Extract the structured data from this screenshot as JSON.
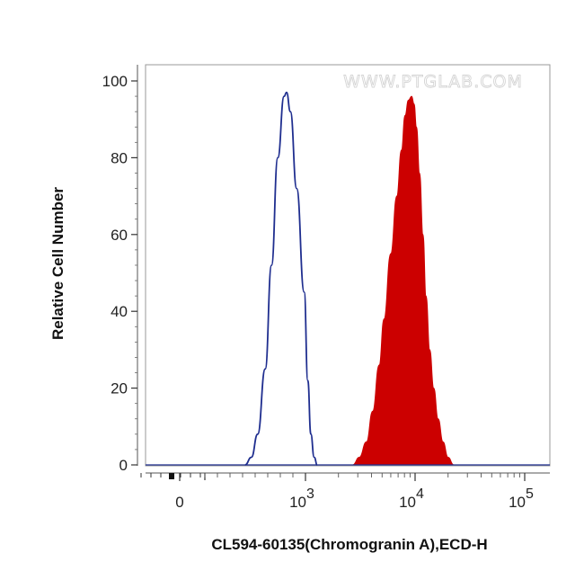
{
  "watermark": "WWW.PTGLAB.COM",
  "chart_data": {
    "type": "area",
    "xlabel": "CL594-60135(Chromogranin A),ECD-H",
    "ylabel": "Relative Cell Number",
    "x_scale": "biexponential",
    "xlim": [
      -150,
      150000
    ],
    "ylim": [
      0,
      100
    ],
    "yticks": [
      0,
      20,
      40,
      60,
      80,
      100
    ],
    "xticks": [
      {
        "value": 0,
        "base": "0",
        "exp": ""
      },
      {
        "value": 1000,
        "base": "10",
        "exp": "3"
      },
      {
        "value": 10000,
        "base": "10",
        "exp": "4"
      },
      {
        "value": 100000,
        "base": "10",
        "exp": "5"
      }
    ],
    "series": [
      {
        "style": "outline",
        "color": "#1f2e8f",
        "points": [
          [
            520,
            0
          ],
          [
            570,
            2
          ],
          [
            620,
            8
          ],
          [
            680,
            25
          ],
          [
            730,
            52
          ],
          [
            780,
            80
          ],
          [
            830,
            96
          ],
          [
            850,
            97
          ],
          [
            880,
            92
          ],
          [
            930,
            72
          ],
          [
            990,
            45
          ],
          [
            1050,
            22
          ],
          [
            1120,
            8
          ],
          [
            1200,
            2
          ],
          [
            1280,
            0
          ]
        ]
      },
      {
        "style": "filled",
        "color": "#cc0000",
        "points": [
          [
            2700,
            0
          ],
          [
            3100,
            2
          ],
          [
            3600,
            6
          ],
          [
            4100,
            14
          ],
          [
            4700,
            26
          ],
          [
            5200,
            38
          ],
          [
            6000,
            55
          ],
          [
            6800,
            70
          ],
          [
            7500,
            82
          ],
          [
            8100,
            91
          ],
          [
            8700,
            95
          ],
          [
            9300,
            96
          ],
          [
            9800,
            94
          ],
          [
            10300,
            88
          ],
          [
            11000,
            76
          ],
          [
            11800,
            60
          ],
          [
            12600,
            44
          ],
          [
            13600,
            30
          ],
          [
            14800,
            20
          ],
          [
            16200,
            12
          ],
          [
            18000,
            6
          ],
          [
            20000,
            2
          ],
          [
            22500,
            0
          ]
        ]
      }
    ]
  }
}
